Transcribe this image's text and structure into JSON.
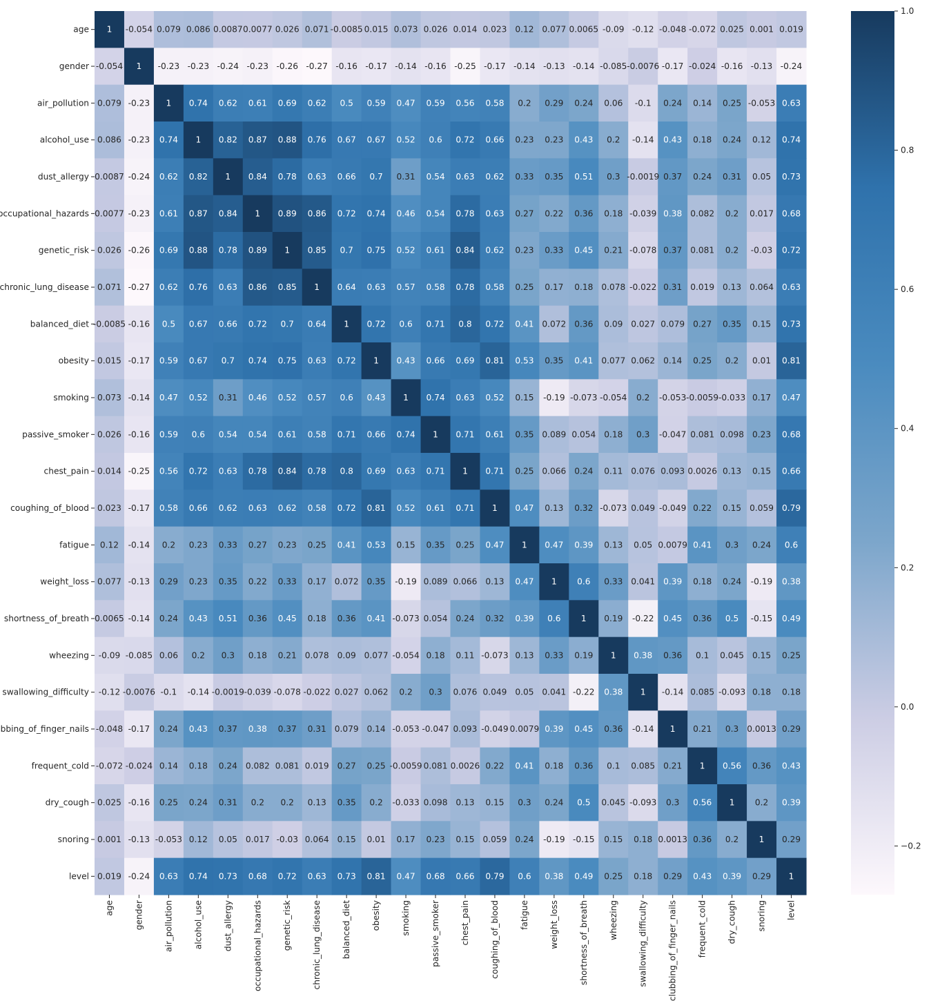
{
  "chart_data": {
    "type": "heatmap",
    "title": "",
    "xlabel": "",
    "ylabel": "",
    "variables": [
      "age",
      "gender",
      "air_pollution",
      "alcohol_use",
      "dust_allergy",
      "occupational_hazards",
      "genetic_risk",
      "chronic_lung_disease",
      "balanced_diet",
      "obesity",
      "smoking",
      "passive_smoker",
      "chest_pain",
      "coughing_of_blood",
      "fatigue",
      "weight_loss",
      "shortness_of_breath",
      "wheezing",
      "swallowing_difficulty",
      "clubbing_of_finger_nails",
      "frequent_cold",
      "dry_cough",
      "snoring",
      "level"
    ],
    "row_labels": [
      "age",
      "gender",
      "air_pollution",
      "alcohol_use",
      "dust_allergy",
      "occupational_hazards",
      "genetic_risk",
      "chronic_lung_disease",
      "balanced_diet",
      "obesity",
      "smoking",
      "passive_smoker",
      "chest_pain",
      "coughing_of_blood",
      "fatigue",
      "weight_loss",
      "shortness_of_breath",
      "wheezing",
      "swallowing_difficulty",
      "ubbing_of_finger_nails",
      "frequent_cold",
      "dry_cough",
      "snoring",
      "level"
    ],
    "values": [
      [
        "1",
        "-0.054",
        "0.079",
        "0.086",
        "0.0087",
        "0.0077",
        "0.026",
        "0.071",
        "-0.0085",
        "0.015",
        "0.073",
        "0.026",
        "0.014",
        "0.023",
        "0.12",
        "0.077",
        "0.0065",
        "-0.09",
        "-0.12",
        "-0.048",
        "-0.072",
        "0.025",
        "0.001",
        "0.019"
      ],
      [
        "-0.054",
        "1",
        "-0.23",
        "-0.23",
        "-0.24",
        "-0.23",
        "-0.26",
        "-0.27",
        "-0.16",
        "-0.17",
        "-0.14",
        "-0.16",
        "-0.25",
        "-0.17",
        "-0.14",
        "-0.13",
        "-0.14",
        "-0.085",
        "-0.0076",
        "-0.17",
        "-0.024",
        "-0.16",
        "-0.13",
        "-0.24"
      ],
      [
        "0.079",
        "-0.23",
        "1",
        "0.74",
        "0.62",
        "0.61",
        "0.69",
        "0.62",
        "0.5",
        "0.59",
        "0.47",
        "0.59",
        "0.56",
        "0.58",
        "0.2",
        "0.29",
        "0.24",
        "0.06",
        "-0.1",
        "0.24",
        "0.14",
        "0.25",
        "-0.053",
        "0.63"
      ],
      [
        "0.086",
        "-0.23",
        "0.74",
        "1",
        "0.82",
        "0.87",
        "0.88",
        "0.76",
        "0.67",
        "0.67",
        "0.52",
        "0.6",
        "0.72",
        "0.66",
        "0.23",
        "0.23",
        "0.43",
        "0.2",
        "-0.14",
        "0.43",
        "0.18",
        "0.24",
        "0.12",
        "0.74"
      ],
      [
        "0.0087",
        "-0.24",
        "0.62",
        "0.82",
        "1",
        "0.84",
        "0.78",
        "0.63",
        "0.66",
        "0.7",
        "0.31",
        "0.54",
        "0.63",
        "0.62",
        "0.33",
        "0.35",
        "0.51",
        "0.3",
        "-0.0019",
        "0.37",
        "0.24",
        "0.31",
        "0.05",
        "0.73"
      ],
      [
        "0.0077",
        "-0.23",
        "0.61",
        "0.87",
        "0.84",
        "1",
        "0.89",
        "0.86",
        "0.72",
        "0.74",
        "0.46",
        "0.54",
        "0.78",
        "0.63",
        "0.27",
        "0.22",
        "0.36",
        "0.18",
        "-0.039",
        "0.38",
        "0.082",
        "0.2",
        "0.017",
        "0.68"
      ],
      [
        "0.026",
        "-0.26",
        "0.69",
        "0.88",
        "0.78",
        "0.89",
        "1",
        "0.85",
        "0.7",
        "0.75",
        "0.52",
        "0.61",
        "0.84",
        "0.62",
        "0.23",
        "0.33",
        "0.45",
        "0.21",
        "-0.078",
        "0.37",
        "0.081",
        "0.2",
        "-0.03",
        "0.72"
      ],
      [
        "0.071",
        "-0.27",
        "0.62",
        "0.76",
        "0.63",
        "0.86",
        "0.85",
        "1",
        "0.64",
        "0.63",
        "0.57",
        "0.58",
        "0.78",
        "0.58",
        "0.25",
        "0.17",
        "0.18",
        "0.078",
        "-0.022",
        "0.31",
        "0.019",
        "0.13",
        "0.064",
        "0.63"
      ],
      [
        "-0.0085",
        "-0.16",
        "0.5",
        "0.67",
        "0.66",
        "0.72",
        "0.7",
        "0.64",
        "1",
        "0.72",
        "0.6",
        "0.71",
        "0.8",
        "0.72",
        "0.41",
        "0.072",
        "0.36",
        "0.09",
        "0.027",
        "0.079",
        "0.27",
        "0.35",
        "0.15",
        "0.73"
      ],
      [
        "0.015",
        "-0.17",
        "0.59",
        "0.67",
        "0.7",
        "0.74",
        "0.75",
        "0.63",
        "0.72",
        "1",
        "0.43",
        "0.66",
        "0.69",
        "0.81",
        "0.53",
        "0.35",
        "0.41",
        "0.077",
        "0.062",
        "0.14",
        "0.25",
        "0.2",
        "0.01",
        "0.81"
      ],
      [
        "0.073",
        "-0.14",
        "0.47",
        "0.52",
        "0.31",
        "0.46",
        "0.52",
        "0.57",
        "0.6",
        "0.43",
        "1",
        "0.74",
        "0.63",
        "0.52",
        "0.15",
        "-0.19",
        "-0.073",
        "-0.054",
        "0.2",
        "-0.053",
        "-0.0059",
        "-0.033",
        "0.17",
        "0.47"
      ],
      [
        "0.026",
        "-0.16",
        "0.59",
        "0.6",
        "0.54",
        "0.54",
        "0.61",
        "0.58",
        "0.71",
        "0.66",
        "0.74",
        "1",
        "0.71",
        "0.61",
        "0.35",
        "0.089",
        "0.054",
        "0.18",
        "0.3",
        "-0.047",
        "0.081",
        "0.098",
        "0.23",
        "0.68"
      ],
      [
        "0.014",
        "-0.25",
        "0.56",
        "0.72",
        "0.63",
        "0.78",
        "0.84",
        "0.78",
        "0.8",
        "0.69",
        "0.63",
        "0.71",
        "1",
        "0.71",
        "0.25",
        "0.066",
        "0.24",
        "0.11",
        "0.076",
        "0.093",
        "0.0026",
        "0.13",
        "0.15",
        "0.66"
      ],
      [
        "0.023",
        "-0.17",
        "0.58",
        "0.66",
        "0.62",
        "0.63",
        "0.62",
        "0.58",
        "0.72",
        "0.81",
        "0.52",
        "0.61",
        "0.71",
        "1",
        "0.47",
        "0.13",
        "0.32",
        "-0.073",
        "0.049",
        "-0.049",
        "0.22",
        "0.15",
        "0.059",
        "0.79"
      ],
      [
        "0.12",
        "-0.14",
        "0.2",
        "0.23",
        "0.33",
        "0.27",
        "0.23",
        "0.25",
        "0.41",
        "0.53",
        "0.15",
        "0.35",
        "0.25",
        "0.47",
        "1",
        "0.47",
        "0.39",
        "0.13",
        "0.05",
        "0.0079",
        "0.41",
        "0.3",
        "0.24",
        "0.6"
      ],
      [
        "0.077",
        "-0.13",
        "0.29",
        "0.23",
        "0.35",
        "0.22",
        "0.33",
        "0.17",
        "0.072",
        "0.35",
        "-0.19",
        "0.089",
        "0.066",
        "0.13",
        "0.47",
        "1",
        "0.6",
        "0.33",
        "0.041",
        "0.39",
        "0.18",
        "0.24",
        "-0.19",
        "0.38"
      ],
      [
        "0.0065",
        "-0.14",
        "0.24",
        "0.43",
        "0.51",
        "0.36",
        "0.45",
        "0.18",
        "0.36",
        "0.41",
        "-0.073",
        "0.054",
        "0.24",
        "0.32",
        "0.39",
        "0.6",
        "1",
        "0.19",
        "-0.22",
        "0.45",
        "0.36",
        "0.5",
        "-0.15",
        "0.49"
      ],
      [
        "-0.09",
        "-0.085",
        "0.06",
        "0.2",
        "0.3",
        "0.18",
        "0.21",
        "0.078",
        "0.09",
        "0.077",
        "-0.054",
        "0.18",
        "0.11",
        "-0.073",
        "0.13",
        "0.33",
        "0.19",
        "1",
        "0.38",
        "0.36",
        "0.1",
        "0.045",
        "0.15",
        "0.25"
      ],
      [
        "-0.12",
        "-0.0076",
        "-0.1",
        "-0.14",
        "-0.0019",
        "-0.039",
        "-0.078",
        "-0.022",
        "0.027",
        "0.062",
        "0.2",
        "0.3",
        "0.076",
        "0.049",
        "0.05",
        "0.041",
        "-0.22",
        "0.38",
        "1",
        "-0.14",
        "0.085",
        "-0.093",
        "0.18",
        "0.18"
      ],
      [
        "-0.048",
        "-0.17",
        "0.24",
        "0.43",
        "0.37",
        "0.38",
        "0.37",
        "0.31",
        "0.079",
        "0.14",
        "-0.053",
        "-0.047",
        "0.093",
        "-0.049",
        "0.0079",
        "0.39",
        "0.45",
        "0.36",
        "-0.14",
        "1",
        "0.21",
        "0.3",
        "0.0013",
        "0.29"
      ],
      [
        "-0.072",
        "-0.024",
        "0.14",
        "0.18",
        "0.24",
        "0.082",
        "0.081",
        "0.019",
        "0.27",
        "0.25",
        "-0.0059",
        "0.081",
        "0.0026",
        "0.22",
        "0.41",
        "0.18",
        "0.36",
        "0.1",
        "0.085",
        "0.21",
        "1",
        "0.56",
        "0.36",
        "0.43"
      ],
      [
        "0.025",
        "-0.16",
        "0.25",
        "0.24",
        "0.31",
        "0.2",
        "0.2",
        "0.13",
        "0.35",
        "0.2",
        "-0.033",
        "0.098",
        "0.13",
        "0.15",
        "0.3",
        "0.24",
        "0.5",
        "0.045",
        "-0.093",
        "0.3",
        "0.56",
        "1",
        "0.2",
        "0.39"
      ],
      [
        "0.001",
        "-0.13",
        "-0.053",
        "0.12",
        "0.05",
        "0.017",
        "-0.03",
        "0.064",
        "0.15",
        "0.01",
        "0.17",
        "0.23",
        "0.15",
        "0.059",
        "0.24",
        "-0.19",
        "-0.15",
        "0.15",
        "0.18",
        "0.0013",
        "0.36",
        "0.2",
        "1",
        "0.29"
      ],
      [
        "0.019",
        "-0.24",
        "0.63",
        "0.74",
        "0.73",
        "0.68",
        "0.72",
        "0.63",
        "0.73",
        "0.81",
        "0.47",
        "0.68",
        "0.66",
        "0.79",
        "0.6",
        "0.38",
        "0.49",
        "0.25",
        "0.18",
        "0.29",
        "0.43",
        "0.39",
        "0.29",
        "1"
      ]
    ],
    "x_tick_labels": [
      "age",
      "gender",
      "air_pollution",
      "alcohol_use",
      "dust_allergy",
      "occupational_hazards",
      "genetic_risk",
      "chronic_lung_disease",
      "balanced_diet",
      "obesity",
      "smoking",
      "passive_smoker",
      "chest_pain",
      "coughing_of_blood",
      "fatigue",
      "weight_loss",
      "shortness_of_breath",
      "wheezing",
      "swallowing_difficulty",
      "clubbing_of_finger_nails",
      "frequent_cold",
      "dry_cough",
      "snoring",
      "level"
    ],
    "colorbar": {
      "vmin": -0.27,
      "vmax": 1.0,
      "ticks": [
        1.0,
        0.8,
        0.6,
        0.4,
        0.2,
        0.0,
        -0.2
      ],
      "tick_labels": [
        "1.0",
        "0.8",
        "0.6",
        "0.4",
        "0.2",
        "0.0",
        "−0.2"
      ],
      "colormap_stops": [
        "#fdf8fc",
        "#cccde4",
        "#7ca6cb",
        "#4a8bbf",
        "#2f72ac",
        "#173a5e"
      ]
    },
    "grid": false,
    "legend": "none"
  }
}
